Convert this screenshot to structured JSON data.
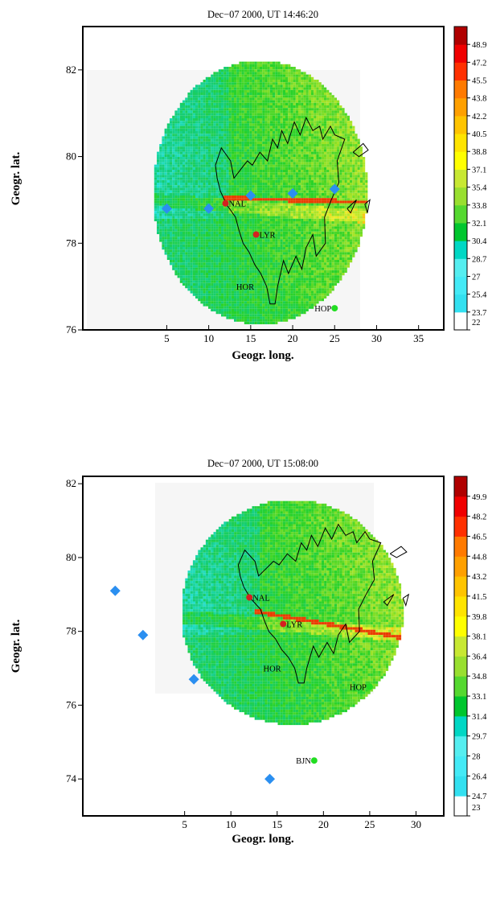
{
  "chart_data": [
    {
      "type": "heatmap",
      "title": "Dec−07 2000, UT 14:46:20",
      "xlabel": "Geogr. long.",
      "ylabel": "Geogr. lat.",
      "xlim": [
        -5,
        38
      ],
      "ylim": [
        76,
        83
      ],
      "xticks": [
        5,
        10,
        15,
        20,
        25,
        30,
        35
      ],
      "yticks": [
        76,
        78,
        80,
        82
      ],
      "colorbar_ticks": [
        "22",
        "23.7",
        "25.4",
        "27",
        "28.7",
        "30.4",
        "32.1",
        "33.8",
        "35.4",
        "37.1",
        "38.8",
        "40.5",
        "42.2",
        "43.8",
        "45.5",
        "47.2",
        "48.9"
      ],
      "radar_center": [
        16.0,
        79.2
      ],
      "radar_radius": [
        12.8,
        3.05
      ],
      "stations": [
        {
          "name": "NAL",
          "lon": 12.0,
          "lat": 78.92,
          "color": "#d42020"
        },
        {
          "name": "LYR",
          "lon": 15.65,
          "lat": 78.2,
          "color": "#d42020"
        },
        {
          "name": "HOR",
          "lon": 15.6,
          "lat": 77.0,
          "color": ""
        },
        {
          "name": "HOP",
          "lon": 25.0,
          "lat": 76.5,
          "color": "#22dd22"
        }
      ],
      "beam_markers": [
        {
          "lon": 5.0,
          "lat": 78.8
        },
        {
          "lon": 10.0,
          "lat": 78.8
        },
        {
          "lon": 15.0,
          "lat": 79.1
        },
        {
          "lon": 20.0,
          "lat": 79.15
        },
        {
          "lon": 25.0,
          "lat": 79.25
        }
      ]
    },
    {
      "type": "heatmap",
      "title": "Dec−07 2000, UT 15:08:00",
      "xlabel": "Geogr. long.",
      "ylabel": "Geogr. lat.",
      "xlim": [
        -6,
        33
      ],
      "ylim": [
        73,
        82.2
      ],
      "xticks": [
        5,
        10,
        15,
        20,
        25,
        30
      ],
      "yticks": [
        74,
        76,
        78,
        80,
        82
      ],
      "colorbar_ticks": [
        "23",
        "24.7",
        "26.4",
        "28",
        "29.7",
        "31.4",
        "33.1",
        "34.8",
        "36.4",
        "38.1",
        "39.8",
        "41.5",
        "43.2",
        "44.8",
        "46.5",
        "48.2",
        "49.9"
      ],
      "radar_center": [
        16.5,
        78.55
      ],
      "radar_radius": [
        12.0,
        3.05
      ],
      "stations": [
        {
          "name": "NAL",
          "lon": 12.0,
          "lat": 78.92,
          "color": "#d42020"
        },
        {
          "name": "LYR",
          "lon": 15.65,
          "lat": 78.2,
          "color": "#d42020"
        },
        {
          "name": "HOR",
          "lon": 15.6,
          "lat": 77.0,
          "color": ""
        },
        {
          "name": "HOP",
          "lon": 25.0,
          "lat": 76.5,
          "color": "#22dd22"
        },
        {
          "name": "BJN",
          "lon": 19.0,
          "lat": 74.5,
          "color": "#22dd22"
        }
      ],
      "beam_markers": [
        {
          "lon": -2.5,
          "lat": 79.1
        },
        {
          "lon": 0.5,
          "lat": 77.9
        },
        {
          "lon": 6.0,
          "lat": 76.7
        },
        {
          "lon": 14.2,
          "lat": 74.0
        }
      ]
    }
  ]
}
